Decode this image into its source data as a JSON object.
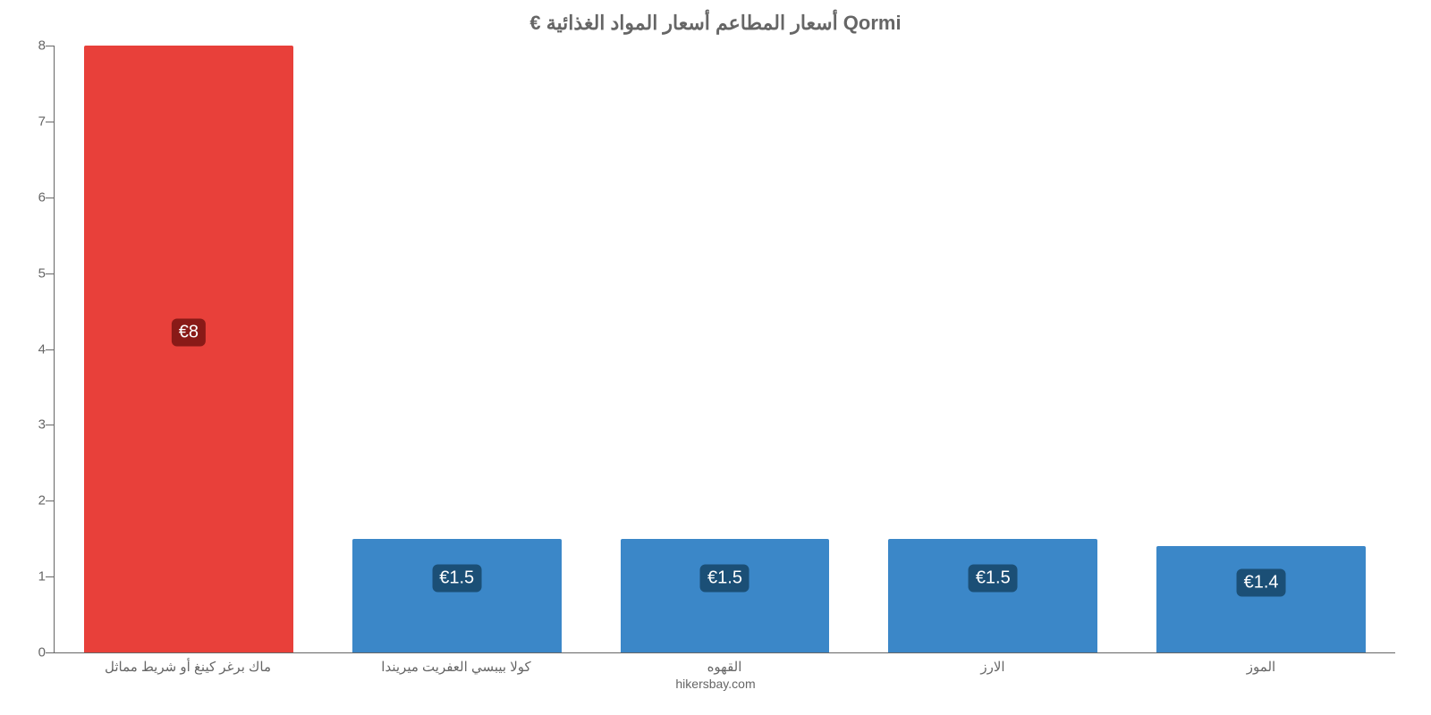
{
  "chart": {
    "type": "bar",
    "title": "€ أسعار المطاعم أسعار المواد الغذائية Qormi",
    "title_fontsize": 22,
    "title_color": "#666666",
    "background_color": "#ffffff",
    "axis_color": "#666666",
    "tick_label_color": "#666666",
    "tick_label_fontsize": 15,
    "x_label_fontsize": 15,
    "bar_width_ratio": 0.78,
    "ylim": [
      0,
      8
    ],
    "ytick_step": 1,
    "yticks": [
      0,
      1,
      2,
      3,
      4,
      5,
      6,
      7,
      8
    ],
    "grid": false,
    "categories": [
      "ماك برغر كينغ أو شريط مماثل",
      "كولا بيبسي العفريت ميريندا",
      "القهوه",
      "الارز",
      "الموز"
    ],
    "values": [
      8,
      1.5,
      1.5,
      1.5,
      1.4
    ],
    "value_labels": [
      "€8",
      "€1.5",
      "€1.5",
      "€1.5",
      "€1.4"
    ],
    "bar_colors": [
      "#e8403a",
      "#3b87c8",
      "#3b87c8",
      "#3b87c8",
      "#3b87c8"
    ],
    "badge_colors": [
      "#891a17",
      "#1b4f76",
      "#1b4f76",
      "#1b4f76",
      "#1b4f76"
    ],
    "badge_fontsize": 20,
    "badge_text_color": "#ffffff",
    "credit": "hikersbay.com",
    "credit_fontsize": 14,
    "credit_color": "#666666"
  }
}
